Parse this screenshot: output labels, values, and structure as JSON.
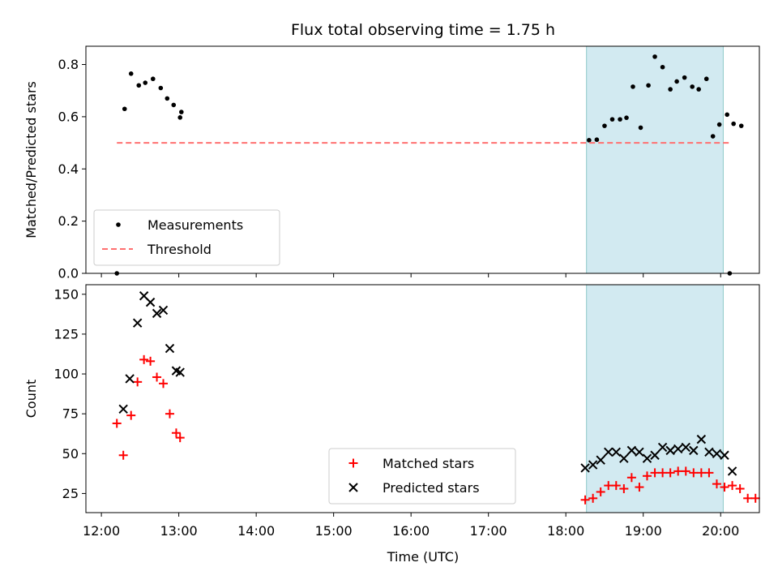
{
  "chart_data": {
    "type": "scatter",
    "title": "Flux total observing time = 1.75 h",
    "xlabel": "Time (UTC)",
    "x_ticks": [
      "12:00",
      "13:00",
      "14:00",
      "15:00",
      "16:00",
      "17:00",
      "18:00",
      "19:00",
      "20:00"
    ],
    "xlim": [
      "11:48",
      "20:30"
    ],
    "shaded_interval": {
      "start": "18:16",
      "end": "20:02",
      "color": "#add8e6"
    },
    "panels": [
      {
        "ylabel": "Matched/Predicted stars",
        "ylim": [
          0,
          0.87
        ],
        "y_ticks": [
          "0.0",
          "0.2",
          "0.4",
          "0.6",
          "0.8"
        ],
        "legend": {
          "position": "lower-left",
          "entries": [
            "Measurements",
            "Threshold"
          ]
        },
        "series": [
          {
            "name": "Measurements",
            "marker": "dot",
            "color": "#000000",
            "points": [
              [
                "12:12",
                0.0
              ],
              [
                "12:18",
                0.63
              ],
              [
                "12:23",
                0.765
              ],
              [
                "12:29",
                0.72
              ],
              [
                "12:34",
                0.73
              ],
              [
                "12:40",
                0.745
              ],
              [
                "12:46",
                0.71
              ],
              [
                "12:51",
                0.67
              ],
              [
                "12:56",
                0.645
              ],
              [
                "13:02",
                0.618
              ],
              [
                "13:01",
                0.597
              ],
              [
                "18:18",
                0.51
              ],
              [
                "18:24",
                0.512
              ],
              [
                "18:30",
                0.565
              ],
              [
                "18:36",
                0.59
              ],
              [
                "18:42",
                0.59
              ],
              [
                "18:47",
                0.596
              ],
              [
                "18:52",
                0.715
              ],
              [
                "18:58",
                0.558
              ],
              [
                "19:04",
                0.72
              ],
              [
                "19:09",
                0.83
              ],
              [
                "19:15",
                0.79
              ],
              [
                "19:21",
                0.705
              ],
              [
                "19:26",
                0.735
              ],
              [
                "19:32",
                0.75
              ],
              [
                "19:38",
                0.715
              ],
              [
                "19:43",
                0.705
              ],
              [
                "19:49",
                0.745
              ],
              [
                "19:54",
                0.525
              ],
              [
                "19:59",
                0.57
              ],
              [
                "20:05",
                0.608
              ],
              [
                "20:10",
                0.573
              ],
              [
                "20:16",
                0.565
              ],
              [
                "20:07",
                0.0
              ]
            ]
          },
          {
            "name": "Threshold",
            "marker": "dashed-line",
            "color": "#ff7070",
            "x_range": [
              "12:12",
              "20:07"
            ],
            "value": 0.5
          }
        ]
      },
      {
        "ylabel": "Count",
        "ylim": [
          13,
          156
        ],
        "y_ticks": [
          "25",
          "50",
          "75",
          "100",
          "125",
          "150"
        ],
        "legend": {
          "position": "lower-center",
          "entries": [
            "Matched stars",
            "Predicted stars"
          ]
        },
        "series": [
          {
            "name": "Matched stars",
            "marker": "plus",
            "color": "#ff0000",
            "points": [
              [
                "12:12",
                69
              ],
              [
                "12:17",
                49
              ],
              [
                "12:23",
                74
              ],
              [
                "12:28",
                95
              ],
              [
                "12:33",
                109
              ],
              [
                "12:38",
                108
              ],
              [
                "12:43",
                98
              ],
              [
                "12:48",
                94
              ],
              [
                "12:53",
                75
              ],
              [
                "12:58",
                63
              ],
              [
                "13:01",
                60
              ],
              [
                "18:15",
                21
              ],
              [
                "18:21",
                22
              ],
              [
                "18:27",
                26
              ],
              [
                "18:33",
                30
              ],
              [
                "18:39",
                30
              ],
              [
                "18:45",
                28
              ],
              [
                "18:51",
                35
              ],
              [
                "18:57",
                29
              ],
              [
                "19:03",
                36
              ],
              [
                "19:09",
                38
              ],
              [
                "19:15",
                38
              ],
              [
                "19:21",
                38
              ],
              [
                "19:27",
                39
              ],
              [
                "19:33",
                39
              ],
              [
                "19:39",
                38
              ],
              [
                "19:45",
                38
              ],
              [
                "19:51",
                38
              ],
              [
                "19:57",
                31
              ],
              [
                "20:03",
                29
              ],
              [
                "20:09",
                30
              ],
              [
                "20:15",
                28
              ],
              [
                "20:21",
                22
              ],
              [
                "20:27",
                22
              ]
            ]
          },
          {
            "name": "Predicted stars",
            "marker": "x",
            "color": "#000000",
            "points": [
              [
                "12:17",
                78
              ],
              [
                "12:22",
                97
              ],
              [
                "12:28",
                132
              ],
              [
                "12:33",
                149
              ],
              [
                "12:38",
                145
              ],
              [
                "12:43",
                138
              ],
              [
                "12:48",
                140
              ],
              [
                "12:53",
                116
              ],
              [
                "12:58",
                102
              ],
              [
                "13:01",
                101
              ],
              [
                "18:15",
                41
              ],
              [
                "18:21",
                43
              ],
              [
                "18:27",
                46
              ],
              [
                "18:33",
                51
              ],
              [
                "18:39",
                51
              ],
              [
                "18:45",
                47
              ],
              [
                "18:51",
                52
              ],
              [
                "18:57",
                51
              ],
              [
                "19:03",
                47
              ],
              [
                "19:09",
                49
              ],
              [
                "19:15",
                54
              ],
              [
                "19:21",
                52
              ],
              [
                "19:27",
                53
              ],
              [
                "19:33",
                54
              ],
              [
                "19:39",
                52
              ],
              [
                "19:45",
                59
              ],
              [
                "19:51",
                51
              ],
              [
                "19:57",
                50
              ],
              [
                "20:03",
                49
              ],
              [
                "20:09",
                39
              ]
            ]
          }
        ]
      }
    ]
  }
}
